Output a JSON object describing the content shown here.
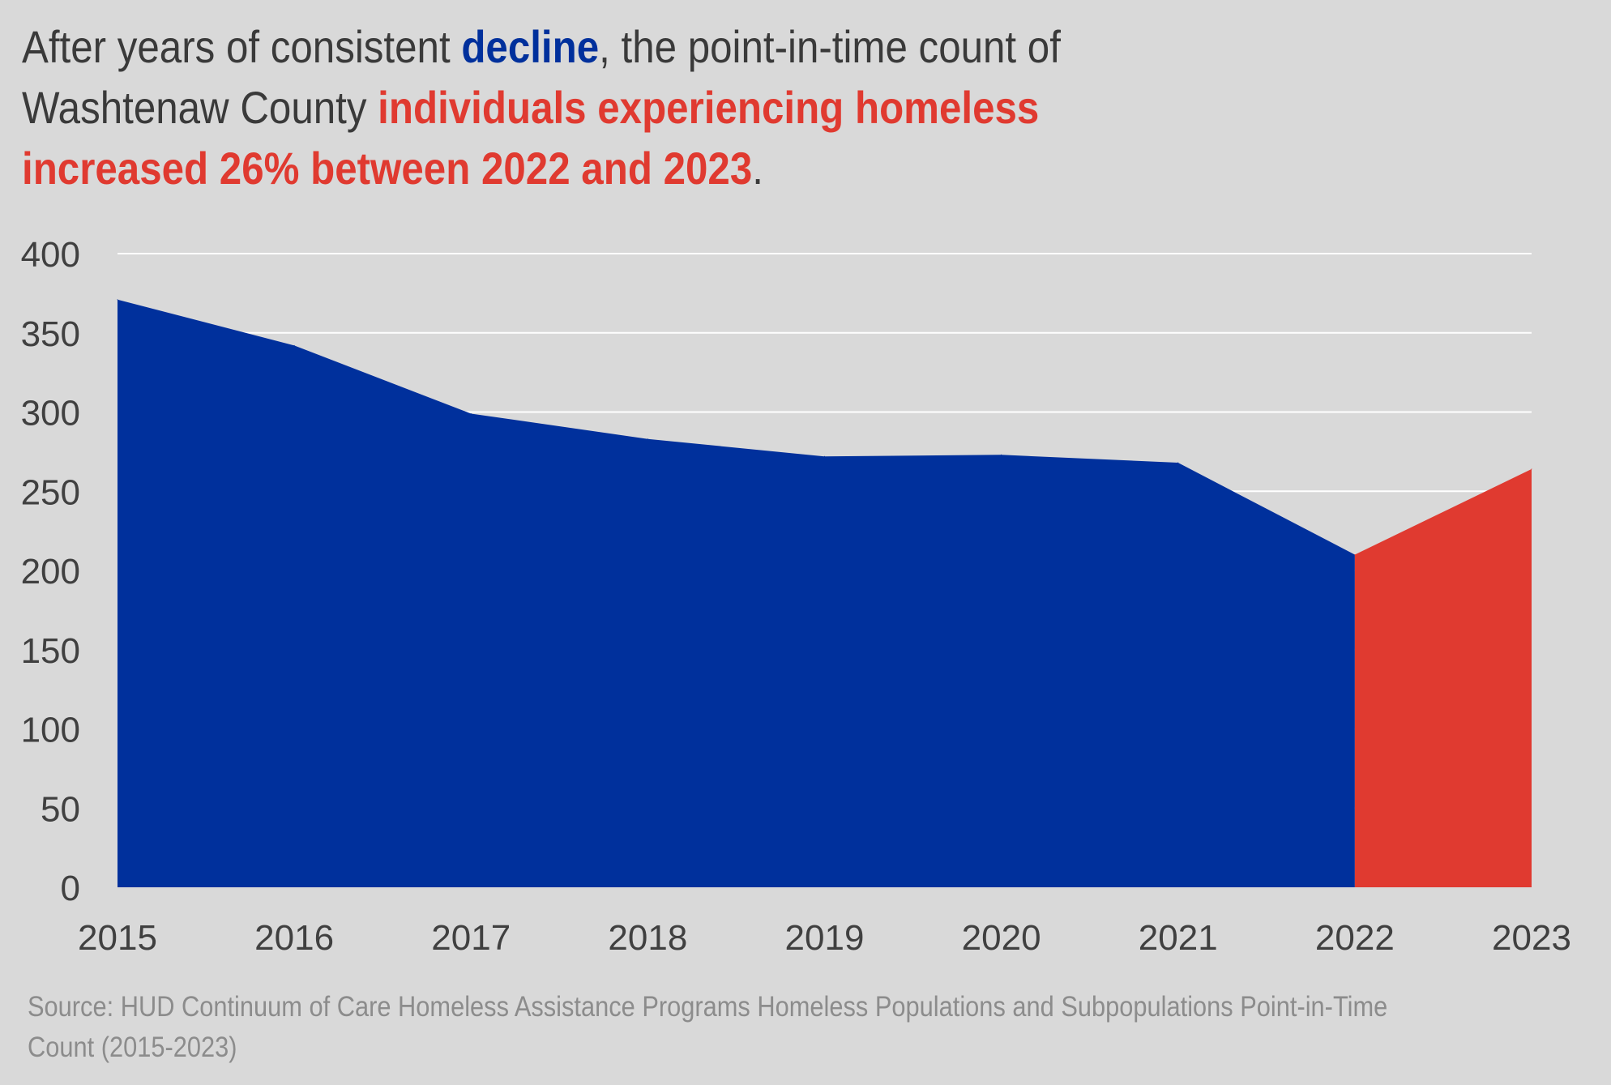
{
  "title": {
    "part1": "After years of consistent ",
    "part2": "decline",
    "part3": ", the point-in-time count of Washtenaw County ",
    "part4": "individuals experiencing homeless increased 26% between 2022 and 2023",
    "part5": "."
  },
  "source": "Source: HUD Continuum of Care Homeless Assistance Programs Homeless Populations and Subpopulations Point-in-Time Count (2015-2023)",
  "colors": {
    "background": "#d9d9d9",
    "decline": "#00309c",
    "increase": "#e03a30",
    "gridline": "#ffffff",
    "text": "#404040"
  },
  "chart_data": {
    "type": "area",
    "x": [
      "2015",
      "2016",
      "2017",
      "2018",
      "2019",
      "2020",
      "2021",
      "2022",
      "2023"
    ],
    "values": [
      371,
      342,
      299,
      283,
      272,
      273,
      268,
      210,
      264
    ],
    "ylim": [
      0,
      400
    ],
    "yticks": [
      0,
      50,
      100,
      150,
      200,
      250,
      300,
      350,
      400
    ],
    "grid": true,
    "highlight_from": "2022"
  }
}
